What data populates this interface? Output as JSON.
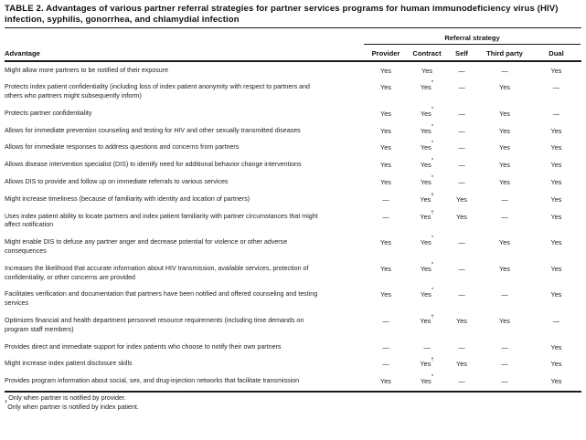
{
  "table": {
    "title": "TABLE 2. Advantages of various partner referral strategies for partner services programs for human immunodeficiency virus (HIV) infection, syphilis, gonorrhea, and chlamydial infection",
    "group_header": "Referral strategy",
    "row_header": "Advantage",
    "columns": [
      "Provider",
      "Contract",
      "Self",
      "Third party",
      "Dual"
    ],
    "rows": [
      {
        "advantage": "Might allow more partners to be notified of their exposure",
        "values": [
          "Yes",
          "Yes",
          "—",
          "—",
          "Yes"
        ]
      },
      {
        "advantage": "Protects index patient confidentiality (including loss of index patient anonymity with respect to partners and others who partners might subsequently inform)",
        "values": [
          "Yes",
          "Yes*",
          "—",
          "Yes",
          "—"
        ]
      },
      {
        "advantage": "Protects partner confidentiality",
        "values": [
          "Yes",
          "Yes*",
          "—",
          "Yes",
          "—"
        ]
      },
      {
        "advantage": "Allows for immediate prevention counseling and testing for HIV and other sexually transmitted diseases",
        "values": [
          "Yes",
          "Yes*",
          "—",
          "Yes",
          "Yes"
        ]
      },
      {
        "advantage": "Allows for immediate responses to address questions and concerns from partners",
        "values": [
          "Yes",
          "Yes*",
          "—",
          "Yes",
          "Yes"
        ]
      },
      {
        "advantage": "Allows disease intervention specialist (DIS) to identify need for additional behavior change interventions",
        "values": [
          "Yes",
          "Yes*",
          "—",
          "Yes",
          "Yes"
        ]
      },
      {
        "advantage": "Allows DIS to provide and follow up on immediate referrals to various services",
        "values": [
          "Yes",
          "Yes*",
          "—",
          "Yes",
          "Yes"
        ]
      },
      {
        "advantage": "Might increase timeliness (because of familiarity with identity and location of partners)",
        "values": [
          "—",
          "Yes†",
          "Yes",
          "—",
          "Yes"
        ]
      },
      {
        "advantage": "Uses index patient ability to locate partners and index patient familiarity with partner circumstances that might affect notification",
        "values": [
          "—",
          "Yes†",
          "Yes",
          "—",
          "Yes"
        ]
      },
      {
        "advantage": "Might enable DIS to defuse any partner anger and decrease potential for violence or other adverse consequences",
        "values": [
          "Yes",
          "Yes*",
          "—",
          "Yes",
          "Yes"
        ]
      },
      {
        "advantage": "Increases the likelihood that accurate information about HIV transmission, available services, protection of confidentiality, or other concerns are provided",
        "values": [
          "Yes",
          "Yes*",
          "—",
          "Yes",
          "Yes"
        ]
      },
      {
        "advantage": "Facilitates verification and documentation that partners have been notified and offered counseling and testing services",
        "values": [
          "Yes",
          "Yes*",
          "—",
          "—",
          "Yes"
        ]
      },
      {
        "advantage": "Optimizes financial and health department personnel resource requirements (including time demands on program staff members)",
        "values": [
          "—",
          "Yes†",
          "Yes",
          "Yes",
          "—"
        ]
      },
      {
        "advantage": "Provides direct and immediate support for index patients who choose to notify their own partners",
        "values": [
          "—",
          "—",
          "—",
          "—",
          "Yes"
        ]
      },
      {
        "advantage": "Might increase index patient disclosure skills",
        "values": [
          "—",
          "Yes†",
          "Yes",
          "—",
          "Yes"
        ]
      },
      {
        "advantage": "Provides program information about social, sex, and drug-injection networks that facilitate transmission",
        "values": [
          "Yes",
          "Yes*",
          "—",
          "—",
          "Yes"
        ]
      }
    ],
    "footnotes": [
      {
        "marker": "*",
        "text": " Only when partner is notified by provider."
      },
      {
        "marker": "†",
        "text": "Only when partner is notified by index patient."
      }
    ]
  }
}
